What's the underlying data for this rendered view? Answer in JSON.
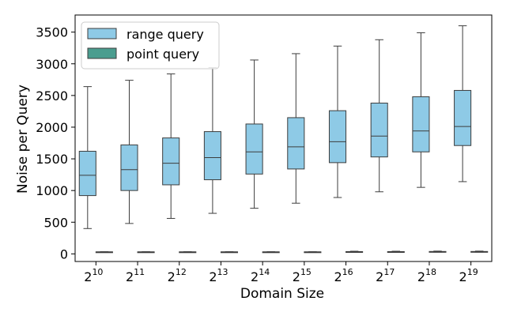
{
  "chart_data": {
    "type": "box",
    "title": "",
    "xlabel": "Domain Size",
    "ylabel": "Noise per Query",
    "ylim": [
      -120,
      3770
    ],
    "yticks": [
      0,
      500,
      1000,
      1500,
      2000,
      2500,
      3000,
      3500
    ],
    "categories": [
      {
        "base": "2",
        "exp": "10"
      },
      {
        "base": "2",
        "exp": "11"
      },
      {
        "base": "2",
        "exp": "12"
      },
      {
        "base": "2",
        "exp": "13"
      },
      {
        "base": "2",
        "exp": "14"
      },
      {
        "base": "2",
        "exp": "15"
      },
      {
        "base": "2",
        "exp": "16"
      },
      {
        "base": "2",
        "exp": "17"
      },
      {
        "base": "2",
        "exp": "18"
      },
      {
        "base": "2",
        "exp": "19"
      }
    ],
    "legend_position": "top-left",
    "series": [
      {
        "name": "range query",
        "color": "#8ecae6",
        "boxes": [
          {
            "whislo": 400,
            "q1": 920,
            "med": 1240,
            "q3": 1620,
            "whishi": 2640
          },
          {
            "whislo": 480,
            "q1": 1000,
            "med": 1330,
            "q3": 1720,
            "whishi": 2740
          },
          {
            "whislo": 560,
            "q1": 1090,
            "med": 1430,
            "q3": 1830,
            "whishi": 2840
          },
          {
            "whislo": 640,
            "q1": 1170,
            "med": 1520,
            "q3": 1930,
            "whishi": 2940
          },
          {
            "whislo": 720,
            "q1": 1260,
            "med": 1610,
            "q3": 2050,
            "whishi": 3060
          },
          {
            "whislo": 800,
            "q1": 1340,
            "med": 1690,
            "q3": 2150,
            "whishi": 3160
          },
          {
            "whislo": 890,
            "q1": 1440,
            "med": 1770,
            "q3": 2260,
            "whishi": 3280
          },
          {
            "whislo": 980,
            "q1": 1530,
            "med": 1860,
            "q3": 2380,
            "whishi": 3380
          },
          {
            "whislo": 1050,
            "q1": 1610,
            "med": 1940,
            "q3": 2480,
            "whishi": 3490
          },
          {
            "whislo": 1140,
            "q1": 1710,
            "med": 2010,
            "q3": 2580,
            "whishi": 3600
          }
        ]
      },
      {
        "name": "point query",
        "color": "#4a9d8f",
        "boxes": [
          {
            "whislo": 28,
            "q1": 30,
            "med": 31,
            "q3": 32,
            "whishi": 34
          },
          {
            "whislo": 28,
            "q1": 30,
            "med": 31,
            "q3": 32,
            "whishi": 34
          },
          {
            "whislo": 28,
            "q1": 30,
            "med": 31,
            "q3": 32,
            "whishi": 34
          },
          {
            "whislo": 28,
            "q1": 30,
            "med": 31,
            "q3": 32,
            "whishi": 34
          },
          {
            "whislo": 28,
            "q1": 30,
            "med": 31,
            "q3": 32,
            "whishi": 34
          },
          {
            "whislo": 28,
            "q1": 30,
            "med": 31,
            "q3": 32,
            "whishi": 34
          },
          {
            "whislo": 28,
            "q1": 32,
            "med": 34,
            "q3": 36,
            "whishi": 42
          },
          {
            "whislo": 28,
            "q1": 32,
            "med": 34,
            "q3": 36,
            "whishi": 42
          },
          {
            "whislo": 28,
            "q1": 32,
            "med": 35,
            "q3": 38,
            "whishi": 44
          },
          {
            "whislo": 28,
            "q1": 32,
            "med": 35,
            "q3": 38,
            "whishi": 44
          }
        ]
      }
    ]
  }
}
